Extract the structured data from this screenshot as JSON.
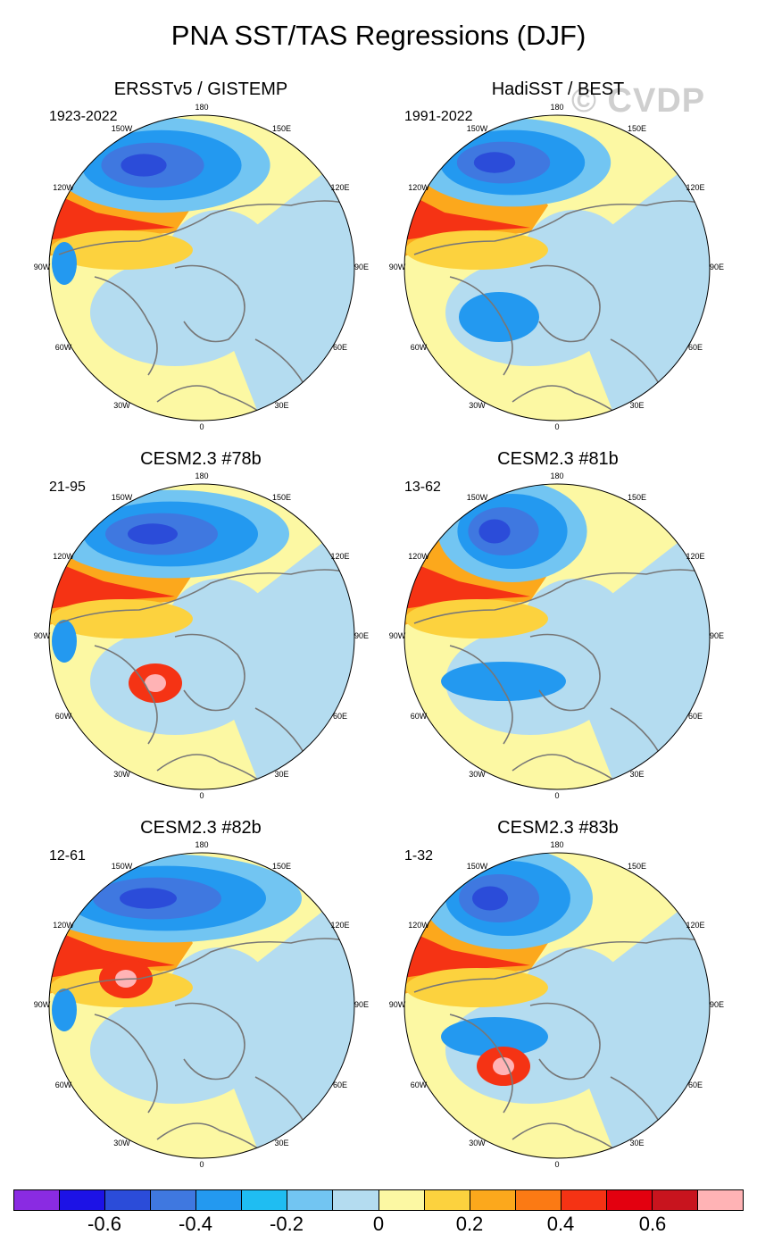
{
  "title": "PNA SST/TAS Regressions (DJF)",
  "watermark": "© CVDP",
  "panels": [
    {
      "title": "ERSSTv5 / GISTEMP",
      "years": "1923-2022"
    },
    {
      "title": "HadiSST / BEST",
      "years": "1991-2022"
    },
    {
      "title": "CESM2.3 #78b",
      "years": "21-95"
    },
    {
      "title": "CESM2.3 #81b",
      "years": "13-62"
    },
    {
      "title": "CESM2.3 #82b",
      "years": "12-61"
    },
    {
      "title": "CESM2.3 #83b",
      "years": "1-32"
    }
  ],
  "longitude_labels": {
    "top": "180",
    "ul": "150W",
    "ur": "150E",
    "ml": "120W",
    "mr": "120E",
    "l": "90W",
    "r": "90E",
    "ll": "60W",
    "lr": "60E",
    "bl": "30W",
    "br": "30E",
    "bottom": "0"
  },
  "colorbar": {
    "colors": [
      "#8a2be2",
      "#1c12e6",
      "#2b4cd9",
      "#3f78e0",
      "#2399f0",
      "#1fbdf2",
      "#72c5f2",
      "#b4dcf0",
      "#fcf8a3",
      "#fcd23e",
      "#fca81c",
      "#fb7a14",
      "#f53314",
      "#e3000f",
      "#c8141e",
      "#ffb3b5"
    ],
    "labels": [
      "-0.6",
      "-0.4",
      "-0.2",
      "0",
      "0.2",
      "0.4",
      "0.6"
    ]
  }
}
